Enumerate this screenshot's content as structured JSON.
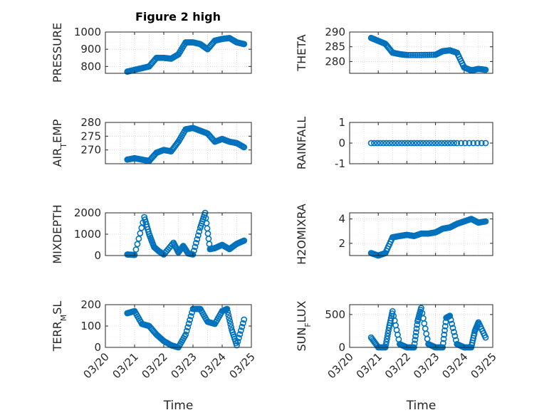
{
  "figure": {
    "title": "Figure 2 high",
    "accent": "#0072BD"
  },
  "chart_data": [
    {
      "type": "scatter",
      "ylabel": "PRESSURE",
      "xlabel": "",
      "ylim": [
        760,
        1000
      ],
      "yticks": [
        800,
        900,
        1000
      ],
      "grid": true,
      "x": [
        "03/20",
        "03/20 18:00",
        "03/21 00:00",
        "03/21 06:00",
        "03/21 12:00",
        "03/21 18:00",
        "03/22 00:00",
        "03/22 06:00",
        "03/22 12:00",
        "03/22 18:00",
        "03/23 00:00",
        "03/23 06:00",
        "03/23 12:00",
        "03/23 18:00",
        "03/24 00:00",
        "03/24 06:00",
        "03/24 12:00",
        "03/24 18:00"
      ],
      "y": [
        null,
        770,
        780,
        790,
        800,
        850,
        850,
        845,
        870,
        940,
        940,
        930,
        900,
        950,
        960,
        965,
        940,
        930
      ]
    },
    {
      "type": "scatter",
      "ylabel": "THETA",
      "xlabel": "",
      "ylim": [
        276,
        290
      ],
      "yticks": [
        280,
        285,
        290
      ],
      "grid": true,
      "x": [
        "03/20 18:00",
        "03/21 00:00",
        "03/21 06:00",
        "03/21 12:00",
        "03/21 18:00",
        "03/22 00:00",
        "03/22 12:00",
        "03/23 00:00",
        "03/23 06:00",
        "03/23 12:00",
        "03/23 18:00",
        "03/24 00:00",
        "03/24 06:00",
        "03/24 12:00",
        "03/24 18:00"
      ],
      "y": [
        288,
        287,
        286,
        283,
        282.5,
        282.2,
        282.2,
        282.3,
        283.5,
        283.8,
        283,
        278,
        277,
        277.5,
        277.2
      ]
    },
    {
      "type": "scatter",
      "ylabel": "AIR_TEMP",
      "xlabel": "",
      "ylim": [
        265,
        280
      ],
      "yticks": [
        270,
        275,
        280
      ],
      "grid": true,
      "x": [
        "03/20 18:00",
        "03/21 00:00",
        "03/21 06:00",
        "03/21 12:00",
        "03/21 18:00",
        "03/22 00:00",
        "03/22 06:00",
        "03/22 12:00",
        "03/22 18:00",
        "03/23 00:00",
        "03/23 06:00",
        "03/23 12:00",
        "03/23 18:00",
        "03/24 00:00",
        "03/24 06:00",
        "03/24 12:00",
        "03/24 18:00"
      ],
      "y": [
        266.5,
        267,
        266.5,
        266,
        269,
        270,
        269.5,
        273,
        277.5,
        278,
        277,
        276,
        273,
        274,
        273,
        272.5,
        271
      ]
    },
    {
      "type": "scatter",
      "ylabel": "RAINFALL",
      "xlabel": "",
      "ylim": [
        -1,
        1
      ],
      "yticks": [
        -1,
        0,
        1
      ],
      "grid": true,
      "x": [
        "03/20 18:00",
        "03/21 12:00",
        "03/22 06:00",
        "03/23 00:00",
        "03/23 18:00",
        "03/24 18:00"
      ],
      "y": [
        0,
        0,
        0,
        0,
        0,
        0
      ]
    },
    {
      "type": "scatter",
      "ylabel": "MIXDEPTH",
      "xlabel": "",
      "ylim": [
        0,
        2000
      ],
      "yticks": [
        0,
        1000,
        2000
      ],
      "grid": true,
      "x": [
        "03/20 18:00",
        "03/21 00:00",
        "03/21 08:00",
        "03/21 12:00",
        "03/21 16:00",
        "03/21 20:00",
        "03/22 00:00",
        "03/22 08:00",
        "03/22 12:00",
        "03/22 16:00",
        "03/22 20:00",
        "03/23 00:00",
        "03/23 06:00",
        "03/23 10:00",
        "03/23 14:00",
        "03/23 18:00",
        "03/24 00:00",
        "03/24 06:00",
        "03/24 12:00",
        "03/24 18:00"
      ],
      "y": [
        50,
        30,
        1800,
        1000,
        400,
        200,
        50,
        600,
        150,
        450,
        100,
        50,
        1300,
        2000,
        300,
        350,
        500,
        300,
        550,
        700
      ]
    },
    {
      "type": "scatter",
      "ylabel": "H2OMIXRA",
      "xlabel": "",
      "ylim": [
        1,
        4.5
      ],
      "yticks": [
        2,
        4
      ],
      "grid": true,
      "x": [
        "03/20 18:00",
        "03/21 00:00",
        "03/21 06:00",
        "03/21 12:00",
        "03/21 18:00",
        "03/22 00:00",
        "03/22 06:00",
        "03/22 12:00",
        "03/22 18:00",
        "03/23 00:00",
        "03/23 06:00",
        "03/23 12:00",
        "03/23 18:00",
        "03/24 00:00",
        "03/24 06:00",
        "03/24 12:00",
        "03/24 18:00"
      ],
      "y": [
        1.2,
        1.0,
        1.2,
        2.5,
        2.6,
        2.7,
        2.6,
        2.8,
        2.8,
        2.9,
        3.2,
        3.3,
        3.6,
        3.8,
        4.0,
        3.7,
        3.8
      ]
    },
    {
      "type": "scatter",
      "ylabel": "TERR_MSL",
      "xlabel": "Time",
      "ylim": [
        0,
        200
      ],
      "yticks": [
        0,
        100,
        200
      ],
      "grid": true,
      "xticks": [
        "03/20",
        "03/21",
        "03/22",
        "03/23",
        "03/24",
        "03/25"
      ],
      "x": [
        "03/20 18:00",
        "03/21 00:00",
        "03/21 06:00",
        "03/21 12:00",
        "03/21 18:00",
        "03/22 00:00",
        "03/22 06:00",
        "03/22 12:00",
        "03/22 18:00",
        "03/23 00:00",
        "03/23 06:00",
        "03/23 12:00",
        "03/23 18:00",
        "03/24 00:00",
        "03/24 04:00",
        "03/24 08:00",
        "03/24 12:00",
        "03/24 18:00"
      ],
      "y": [
        160,
        170,
        110,
        100,
        60,
        30,
        10,
        0,
        60,
        180,
        180,
        120,
        110,
        170,
        180,
        80,
        10,
        130
      ]
    },
    {
      "type": "scatter",
      "ylabel": "SUN_FLUX",
      "xlabel": "Time",
      "ylim": [
        0,
        650
      ],
      "yticks": [
        0,
        500
      ],
      "grid": true,
      "xticks": [
        "03/20",
        "03/21",
        "03/22",
        "03/23",
        "03/24",
        "03/25"
      ],
      "x": [
        "03/20 18:00",
        "03/21 00:00",
        "03/21 06:00",
        "03/21 09:00",
        "03/21 12:00",
        "03/21 18:00",
        "03/22 00:00",
        "03/22 06:00",
        "03/22 09:00",
        "03/22 12:00",
        "03/22 18:00",
        "03/23 00:00",
        "03/23 06:00",
        "03/23 09:00",
        "03/23 12:00",
        "03/23 18:00",
        "03/24 00:00",
        "03/24 06:00",
        "03/24 09:00",
        "03/24 12:00",
        "03/24 18:00"
      ],
      "y": [
        150,
        0,
        0,
        300,
        550,
        50,
        0,
        0,
        400,
        600,
        50,
        0,
        0,
        450,
        480,
        50,
        0,
        0,
        250,
        380,
        150
      ]
    }
  ]
}
